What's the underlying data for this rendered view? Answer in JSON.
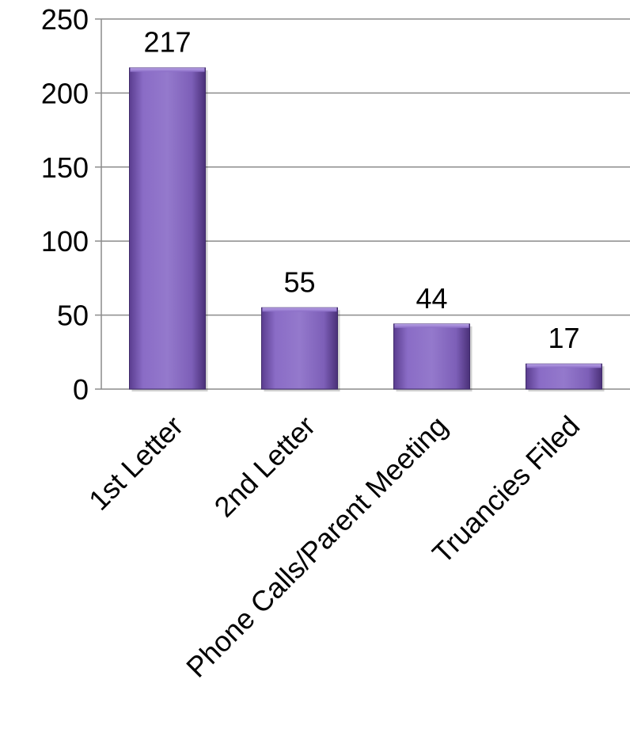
{
  "chart_data": {
    "type": "bar",
    "categories": [
      "1st Letter",
      "2nd Letter",
      "Phone Calls/Parent Meeting",
      "Truancies Filed"
    ],
    "values": [
      217,
      55,
      44,
      17
    ],
    "data_labels": [
      "217",
      "55",
      "44",
      "17"
    ],
    "title": "",
    "xlabel": "",
    "ylabel": "",
    "ylim": [
      0,
      250
    ],
    "yticks": [
      0,
      50,
      100,
      150,
      200,
      250
    ],
    "ytick_labels": [
      "0",
      "50",
      "100",
      "150",
      "200",
      "250"
    ],
    "grid": true,
    "legend": "none",
    "colors": {
      "bar_light": "#9a7fd0",
      "bar_mid": "#7b5eb6",
      "bar_dark": "#4f3582",
      "grid": "#8c8c8c",
      "axis": "#8c8c8c"
    }
  }
}
